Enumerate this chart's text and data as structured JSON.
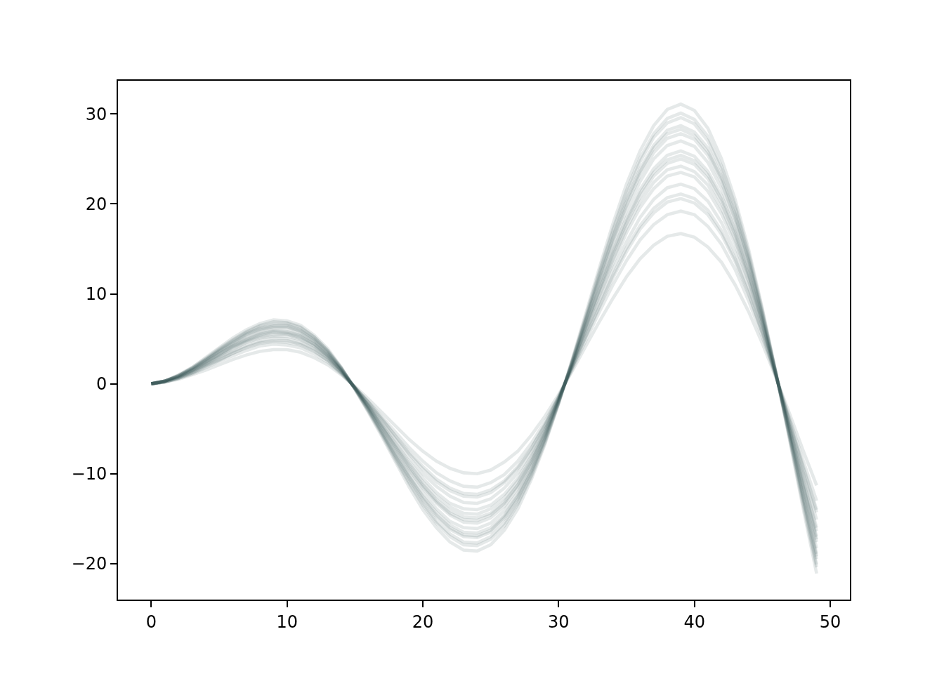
{
  "chart_data": {
    "type": "line",
    "grid": false,
    "marker": "none",
    "line_style": "solid",
    "x": [
      0,
      1,
      2,
      3,
      4,
      5,
      6,
      7,
      8,
      9,
      10,
      11,
      12,
      13,
      14,
      15,
      16,
      17,
      18,
      19,
      20,
      21,
      22,
      23,
      24,
      25,
      26,
      27,
      28,
      29,
      30,
      31,
      32,
      33,
      34,
      35,
      36,
      37,
      38,
      39,
      40,
      41,
      42,
      43,
      44,
      45,
      46,
      47,
      48,
      49
    ],
    "xlim": [
      -2.45,
      51.45
    ],
    "ylim": [
      -24.0,
      33.7
    ],
    "xticks": [
      0,
      10,
      20,
      30,
      40,
      50
    ],
    "yticks": [
      {
        "value": -20,
        "label": "−20"
      },
      {
        "value": -10,
        "label": "−10"
      },
      0,
      10,
      20,
      30
    ],
    "series": [
      {
        "color": "#2f4f4f",
        "values": [
          0,
          0.3,
          1.0,
          1.8,
          2.9,
          4.0,
          5.1,
          6.0,
          6.7,
          7.1,
          7.0,
          6.5,
          5.4,
          3.9,
          1.8,
          -0.6,
          -3.2,
          -5.9,
          -8.7,
          -11.5,
          -14.0,
          -16.0,
          -17.6,
          -18.5,
          -18.6,
          -17.9,
          -16.3,
          -13.9,
          -10.6,
          -6.7,
          -2.2,
          2.7,
          7.8,
          12.9,
          17.8,
          22.2,
          25.9,
          28.7,
          30.5,
          31.1,
          30.4,
          28.4,
          25.0,
          20.5,
          14.9,
          8.4,
          1.3,
          -6.2,
          -13.8,
          -21.1
        ]
      },
      {
        "color": "#2f4f4f",
        "values": [
          0,
          0.3,
          0.9,
          1.8,
          2.8,
          3.9,
          4.9,
          5.8,
          6.5,
          6.9,
          6.8,
          6.3,
          5.2,
          3.7,
          1.8,
          -0.6,
          -3.1,
          -5.7,
          -8.5,
          -11.1,
          -13.5,
          -15.5,
          -17.0,
          -17.9,
          -18.0,
          -17.3,
          -15.8,
          -13.4,
          -10.3,
          -6.5,
          -2.2,
          2.6,
          7.5,
          12.5,
          17.2,
          21.5,
          25.1,
          27.8,
          29.5,
          30.1,
          29.4,
          27.5,
          24.2,
          19.9,
          14.5,
          8.2,
          1.2,
          -6.0,
          -13.4,
          -20.4
        ]
      },
      {
        "color": "#2f4f4f",
        "values": [
          0,
          0.3,
          0.9,
          1.7,
          2.7,
          3.8,
          4.8,
          5.7,
          6.4,
          6.7,
          6.7,
          6.2,
          5.2,
          3.7,
          1.7,
          -0.6,
          -3.0,
          -5.6,
          -8.3,
          -10.9,
          -13.3,
          -15.3,
          -16.7,
          -17.6,
          -17.7,
          -17.0,
          -15.5,
          -13.2,
          -10.1,
          -6.4,
          -2.1,
          2.5,
          7.4,
          12.3,
          16.9,
          21.1,
          24.7,
          27.4,
          29.0,
          29.6,
          28.9,
          27.0,
          23.8,
          19.5,
          14.2,
          8.0,
          1.2,
          -5.9,
          -13.1,
          -20.1
        ]
      },
      {
        "color": "#2f4f4f",
        "values": [
          0,
          0.3,
          0.9,
          1.7,
          2.7,
          3.7,
          4.7,
          5.6,
          6.2,
          6.5,
          6.5,
          6.0,
          5.0,
          3.6,
          1.7,
          -0.5,
          -2.9,
          -5.5,
          -8.1,
          -10.6,
          -12.9,
          -14.8,
          -16.2,
          -17.0,
          -17.1,
          -16.5,
          -15.0,
          -12.8,
          -9.8,
          -6.2,
          -2.1,
          2.5,
          7.2,
          11.9,
          16.4,
          20.5,
          23.9,
          26.5,
          28.2,
          28.7,
          28.0,
          26.2,
          23.1,
          18.9,
          13.8,
          7.8,
          1.2,
          -5.7,
          -12.7,
          -19.5
        ]
      },
      {
        "color": "#2f4f4f",
        "values": [
          0,
          0.3,
          0.9,
          1.7,
          2.6,
          3.6,
          4.6,
          5.5,
          6.1,
          6.4,
          6.4,
          5.9,
          4.9,
          3.5,
          1.7,
          -0.5,
          -2.9,
          -5.4,
          -8.0,
          -10.4,
          -12.7,
          -14.6,
          -16.0,
          -16.8,
          -16.9,
          -16.3,
          -14.8,
          -12.6,
          -9.7,
          -6.1,
          -2.0,
          2.4,
          7.1,
          11.7,
          16.2,
          20.2,
          23.6,
          26.2,
          27.8,
          28.3,
          27.6,
          25.8,
          22.8,
          18.7,
          13.6,
          7.7,
          1.2,
          -5.7,
          -12.6,
          -19.2
        ]
      },
      {
        "color": "#2f4f4f",
        "values": [
          0,
          0.3,
          0.9,
          1.6,
          2.6,
          3.6,
          4.5,
          5.4,
          6.0,
          6.3,
          6.3,
          5.8,
          4.8,
          3.4,
          1.6,
          -0.5,
          -2.8,
          -5.3,
          -7.8,
          -10.3,
          -12.5,
          -14.3,
          -15.7,
          -16.5,
          -16.6,
          -16.0,
          -14.6,
          -12.4,
          -9.5,
          -6.0,
          -2.0,
          2.4,
          7.0,
          11.5,
          15.9,
          19.8,
          23.2,
          25.7,
          27.3,
          27.8,
          27.2,
          25.4,
          22.4,
          18.3,
          13.4,
          7.5,
          1.2,
          -5.6,
          -12.3,
          -18.9
        ]
      },
      {
        "color": "#2f4f4f",
        "values": [
          0,
          0.3,
          0.8,
          1.6,
          2.5,
          3.5,
          4.4,
          5.2,
          5.8,
          6.1,
          6.1,
          5.6,
          4.7,
          3.3,
          1.6,
          -0.5,
          -2.7,
          -5.1,
          -7.6,
          -10.0,
          -12.1,
          -13.9,
          -15.3,
          -16.0,
          -16.1,
          -15.5,
          -14.1,
          -12.1,
          -9.2,
          -5.8,
          -1.9,
          2.3,
          6.8,
          11.2,
          15.4,
          19.3,
          22.5,
          25.0,
          26.5,
          27.0,
          26.4,
          24.6,
          21.7,
          17.8,
          13.0,
          7.3,
          1.1,
          -5.4,
          -12.0,
          -18.3
        ]
      },
      {
        "color": "#2f4f4f",
        "values": [
          0,
          0.3,
          0.8,
          1.5,
          2.4,
          3.3,
          4.2,
          5.0,
          5.6,
          5.9,
          5.8,
          5.4,
          4.5,
          3.2,
          1.5,
          -0.5,
          -2.6,
          -4.9,
          -7.3,
          -9.6,
          -11.6,
          -13.3,
          -14.6,
          -15.4,
          -15.5,
          -14.9,
          -13.6,
          -11.6,
          -8.9,
          -5.6,
          -1.9,
          2.2,
          6.5,
          10.7,
          14.8,
          18.5,
          21.6,
          23.9,
          25.4,
          25.9,
          25.3,
          23.6,
          20.9,
          17.1,
          12.4,
          7.0,
          1.1,
          -5.2,
          -11.5,
          -17.6
        ]
      },
      {
        "color": "#2f4f4f",
        "values": [
          0,
          0.3,
          0.8,
          1.5,
          2.4,
          3.3,
          4.2,
          4.9,
          5.5,
          5.8,
          5.7,
          5.3,
          4.4,
          3.1,
          1.5,
          -0.5,
          -2.6,
          -4.8,
          -7.1,
          -9.4,
          -11.4,
          -13.1,
          -14.4,
          -15.1,
          -15.2,
          -14.6,
          -13.3,
          -11.3,
          -8.7,
          -5.5,
          -1.8,
          2.2,
          6.4,
          10.5,
          14.5,
          18.1,
          21.2,
          23.5,
          24.9,
          25.4,
          24.8,
          23.2,
          20.5,
          16.8,
          12.2,
          6.9,
          1.1,
          -5.1,
          -11.3,
          -17.3
        ]
      },
      {
        "color": "#2f4f4f",
        "values": [
          0,
          0.3,
          0.8,
          1.5,
          2.3,
          3.2,
          4.1,
          4.8,
          5.4,
          5.7,
          5.6,
          5.2,
          4.4,
          3.1,
          1.5,
          -0.5,
          -2.5,
          -4.8,
          -7.0,
          -9.2,
          -11.2,
          -12.9,
          -14.1,
          -14.8,
          -14.9,
          -14.4,
          -13.1,
          -11.2,
          -8.6,
          -5.4,
          -1.8,
          2.1,
          6.3,
          10.4,
          14.3,
          17.8,
          20.8,
          23.1,
          24.5,
          25.0,
          24.4,
          22.8,
          20.1,
          16.5,
          12.0,
          6.8,
          1.0,
          -5.0,
          -11.1,
          -17.0
        ]
      },
      {
        "color": "#2f4f4f",
        "values": [
          0,
          0.3,
          0.7,
          1.4,
          2.2,
          3.1,
          4.0,
          4.7,
          5.2,
          5.5,
          5.5,
          5.0,
          4.2,
          3.0,
          1.4,
          -0.5,
          -2.5,
          -4.6,
          -6.8,
          -8.9,
          -10.9,
          -12.5,
          -13.7,
          -14.4,
          -14.5,
          -13.9,
          -12.7,
          -10.8,
          -8.3,
          -5.2,
          -1.7,
          2.1,
          6.1,
          10.0,
          13.8,
          17.3,
          20.2,
          22.4,
          23.8,
          24.2,
          23.6,
          22.1,
          19.5,
          16.0,
          11.6,
          6.6,
          1.0,
          -4.8,
          -10.7,
          -16.4
        ]
      },
      {
        "color": "#2f4f4f",
        "values": [
          0,
          0.2,
          0.7,
          1.4,
          2.2,
          3.0,
          3.8,
          4.6,
          5.1,
          5.3,
          5.3,
          4.9,
          4.1,
          2.9,
          1.4,
          -0.4,
          -2.4,
          -4.5,
          -6.6,
          -8.7,
          -10.5,
          -12.1,
          -13.3,
          -13.9,
          -14.0,
          -13.5,
          -12.3,
          -10.5,
          -8.0,
          -5.1,
          -1.7,
          2.0,
          5.9,
          9.7,
          13.4,
          16.8,
          19.6,
          21.7,
          23.1,
          23.5,
          23.0,
          21.4,
          18.9,
          15.5,
          11.3,
          6.4,
          1.0,
          -4.7,
          -10.4,
          -16.0
        ]
      },
      {
        "color": "#2f4f4f",
        "values": [
          0,
          0.2,
          0.7,
          1.3,
          2.1,
          2.9,
          3.6,
          4.3,
          4.8,
          5.1,
          5.0,
          4.6,
          3.9,
          2.8,
          1.3,
          -0.4,
          -2.3,
          -4.2,
          -6.2,
          -8.2,
          -10.0,
          -11.4,
          -12.5,
          -13.2,
          -13.3,
          -12.8,
          -11.6,
          -9.9,
          -7.6,
          -4.8,
          -1.6,
          1.9,
          5.6,
          9.2,
          12.7,
          15.8,
          18.5,
          20.5,
          21.8,
          22.2,
          21.7,
          20.3,
          17.9,
          14.6,
          10.7,
          6.0,
          0.9,
          -4.4,
          -9.8,
          -15.1
        ]
      },
      {
        "color": "#2f4f4f",
        "values": [
          0,
          0.2,
          0.6,
          1.2,
          2.0,
          2.7,
          3.4,
          4.1,
          4.6,
          4.8,
          4.8,
          4.4,
          3.7,
          2.6,
          1.2,
          -0.4,
          -2.1,
          -4.0,
          -5.9,
          -7.8,
          -9.5,
          -10.9,
          -11.9,
          -12.5,
          -12.6,
          -12.1,
          -11.0,
          -9.4,
          -7.2,
          -4.6,
          -1.5,
          1.8,
          5.3,
          8.7,
          12.1,
          15.1,
          17.6,
          19.5,
          20.7,
          21.1,
          20.6,
          19.3,
          17.0,
          13.9,
          10.1,
          5.7,
          0.9,
          -4.2,
          -9.4,
          -14.3
        ]
      },
      {
        "color": "#2f4f4f",
        "values": [
          0,
          0.2,
          0.6,
          1.2,
          1.9,
          2.6,
          3.4,
          4.0,
          4.5,
          4.7,
          4.6,
          4.3,
          3.6,
          2.6,
          1.2,
          -0.4,
          -2.1,
          -3.9,
          -5.8,
          -7.6,
          -9.2,
          -10.6,
          -11.6,
          -12.2,
          -12.3,
          -11.8,
          -10.8,
          -9.2,
          -7.1,
          -4.5,
          -1.5,
          1.8,
          5.2,
          8.5,
          11.8,
          14.7,
          17.2,
          19.0,
          20.2,
          20.6,
          20.1,
          18.8,
          16.6,
          13.6,
          9.9,
          5.6,
          0.9,
          -4.1,
          -9.1,
          -14.0
        ]
      },
      {
        "color": "#2f4f4f",
        "values": [
          0,
          0.2,
          0.6,
          1.1,
          1.8,
          2.5,
          3.1,
          3.7,
          4.2,
          4.4,
          4.3,
          4.0,
          3.3,
          2.4,
          1.1,
          -0.4,
          -2.0,
          -3.7,
          -5.4,
          -7.1,
          -8.6,
          -9.9,
          -10.8,
          -11.4,
          -11.5,
          -11.0,
          -10.1,
          -8.6,
          -6.6,
          -4.2,
          -1.4,
          1.6,
          4.8,
          8.0,
          11.0,
          13.7,
          16.0,
          17.7,
          18.8,
          19.2,
          18.8,
          17.5,
          15.5,
          12.7,
          9.2,
          5.2,
          0.8,
          -3.8,
          -8.5,
          -13.0
        ]
      },
      {
        "color": "#2f4f4f",
        "values": [
          0,
          0.2,
          0.5,
          1.0,
          1.5,
          2.1,
          2.7,
          3.2,
          3.6,
          3.8,
          3.8,
          3.5,
          2.9,
          2.1,
          1.0,
          -0.3,
          -1.7,
          -3.2,
          -4.7,
          -6.2,
          -7.5,
          -8.6,
          -9.4,
          -9.9,
          -10.0,
          -9.6,
          -8.7,
          -7.5,
          -5.7,
          -3.6,
          -1.2,
          1.4,
          4.2,
          6.9,
          9.5,
          11.9,
          13.9,
          15.4,
          16.4,
          16.7,
          16.3,
          15.2,
          13.5,
          11.0,
          8.0,
          4.5,
          0.7,
          -3.3,
          -7.4,
          -11.3
        ]
      }
    ]
  }
}
